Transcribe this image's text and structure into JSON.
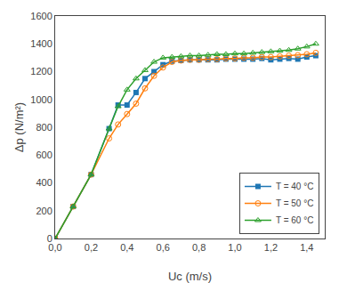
{
  "chart_data": {
    "type": "line",
    "xlabel": "Uc (m/s)",
    "ylabel": "Δp (N/m²)",
    "xlim": [
      0.0,
      1.5
    ],
    "ylim": [
      0,
      1600
    ],
    "xticks": [
      {
        "value": 0.0,
        "label": "0,0"
      },
      {
        "value": 0.2,
        "label": "0,2"
      },
      {
        "value": 0.4,
        "label": "0,4"
      },
      {
        "value": 0.6,
        "label": "0,6"
      },
      {
        "value": 0.8,
        "label": "0,8"
      },
      {
        "value": 1.0,
        "label": "1,0"
      },
      {
        "value": 1.2,
        "label": "1,2"
      },
      {
        "value": 1.4,
        "label": "1,4"
      }
    ],
    "yticks": [
      0,
      200,
      400,
      600,
      800,
      1000,
      1200,
      1400,
      1600
    ],
    "grid": false,
    "legend": "lower right",
    "series": [
      {
        "name": "T = 40 °C",
        "marker": "square",
        "x": [
          0.0,
          0.1,
          0.2,
          0.3,
          0.35,
          0.4,
          0.45,
          0.5,
          0.55,
          0.6,
          0.65,
          0.7,
          0.75,
          0.8,
          0.85,
          0.9,
          0.95,
          1.0,
          1.05,
          1.1,
          1.15,
          1.2,
          1.25,
          1.3,
          1.35,
          1.4,
          1.45
        ],
        "values": [
          0,
          230,
          460,
          790,
          960,
          960,
          1050,
          1150,
          1200,
          1250,
          1275,
          1280,
          1285,
          1285,
          1285,
          1285,
          1290,
          1290,
          1290,
          1290,
          1295,
          1285,
          1290,
          1295,
          1290,
          1305,
          1315
        ]
      },
      {
        "name": "T = 50 °C",
        "marker": "circle-open",
        "x": [
          0.0,
          0.1,
          0.2,
          0.3,
          0.35,
          0.4,
          0.45,
          0.5,
          0.55,
          0.6,
          0.65,
          0.7,
          0.75,
          0.8,
          0.85,
          0.9,
          0.95,
          1.0,
          1.05,
          1.1,
          1.15,
          1.2,
          1.25,
          1.3,
          1.35,
          1.4,
          1.45
        ],
        "values": [
          0,
          230,
          460,
          720,
          820,
          895,
          970,
          1080,
          1170,
          1230,
          1270,
          1280,
          1285,
          1285,
          1290,
          1290,
          1295,
          1295,
          1300,
          1300,
          1305,
          1305,
          1310,
          1315,
          1318,
          1325,
          1335
        ]
      },
      {
        "name": "T = 60 °C",
        "marker": "triangle-up-open",
        "x": [
          0.0,
          0.1,
          0.2,
          0.3,
          0.35,
          0.4,
          0.45,
          0.5,
          0.55,
          0.6,
          0.65,
          0.7,
          0.75,
          0.8,
          0.85,
          0.9,
          0.95,
          1.0,
          1.05,
          1.1,
          1.15,
          1.2,
          1.25,
          1.3,
          1.35,
          1.4,
          1.45
        ],
        "values": [
          0,
          230,
          460,
          790,
          950,
          1070,
          1150,
          1210,
          1270,
          1300,
          1305,
          1310,
          1315,
          1315,
          1320,
          1325,
          1325,
          1330,
          1330,
          1335,
          1340,
          1345,
          1350,
          1355,
          1365,
          1380,
          1400
        ]
      }
    ]
  }
}
